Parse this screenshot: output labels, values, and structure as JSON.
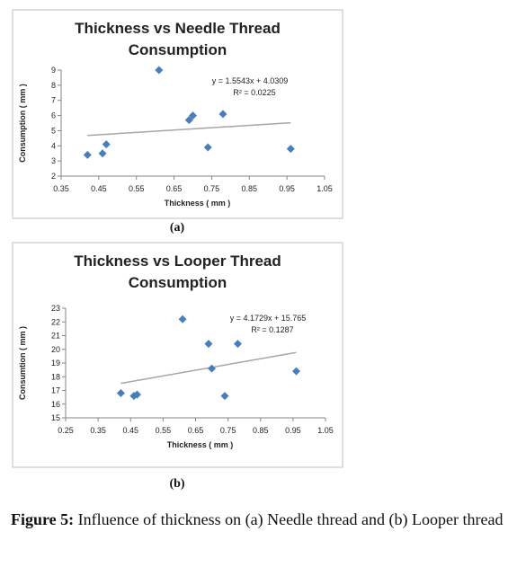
{
  "chart_data": [
    {
      "type": "scatter",
      "title": [
        "Thickness vs Needle Thread",
        "Consumption"
      ],
      "x_label": "Thickness ( mm )",
      "y_label": "Consumption ( mm )",
      "x": [
        0.42,
        0.46,
        0.47,
        0.61,
        0.69,
        0.7,
        0.74,
        0.78,
        0.96
      ],
      "values": [
        3.4,
        3.5,
        4.1,
        9.0,
        5.7,
        6.0,
        3.9,
        6.1,
        3.8
      ],
      "color": "#4a7ebb",
      "xlim": [
        0.35,
        1.05
      ],
      "xticks": [
        0.35,
        0.45,
        0.55,
        0.65,
        0.75,
        0.85,
        0.95,
        1.05
      ],
      "ylim": [
        2,
        9
      ],
      "yticks": [
        2,
        3,
        4,
        5,
        6,
        7,
        8,
        9
      ],
      "trendline": {
        "slope": 1.5543,
        "intercept": 4.0309,
        "color": "#a6a6a6",
        "equation": "y = 1.5543x + 4.0309",
        "r2": "R² = 0.0225"
      },
      "grid": false,
      "sublabel": "(a)"
    },
    {
      "type": "scatter",
      "title": [
        "Thickness vs Looper Thread",
        "Consumption"
      ],
      "x_label": "Thickness ( mm )",
      "y_label": "Consumtion ( mm )",
      "x": [
        0.42,
        0.46,
        0.47,
        0.61,
        0.69,
        0.7,
        0.74,
        0.78,
        0.96
      ],
      "values": [
        16.8,
        16.6,
        16.7,
        22.2,
        20.4,
        18.6,
        16.6,
        20.4,
        18.4
      ],
      "color": "#4a7ebb",
      "xlim": [
        0.25,
        1.05
      ],
      "xticks": [
        0.25,
        0.35,
        0.45,
        0.55,
        0.65,
        0.75,
        0.85,
        0.95,
        1.05
      ],
      "ylim": [
        15,
        23
      ],
      "yticks": [
        15,
        16,
        17,
        18,
        19,
        20,
        21,
        22,
        23
      ],
      "trendline": {
        "slope": 4.1729,
        "intercept": 15.765,
        "color": "#a6a6a6",
        "equation": "y = 4.1729x + 15.765",
        "r2": "R² = 0.1287"
      },
      "grid": false,
      "sublabel": "(b)"
    }
  ],
  "caption": {
    "label": "Figure 5:",
    "text": "Influence of thickness on (a) Needle thread and (b) Looper thread"
  }
}
